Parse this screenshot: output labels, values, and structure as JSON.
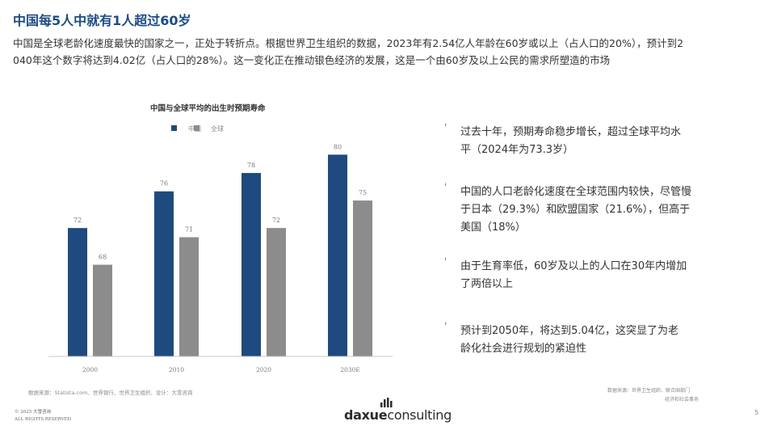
{
  "header": {
    "title": "中国每5人中就有1人超过60岁",
    "intro_line1": "中国是全球老龄化速度最快的国家之一，正处于转折点。根据世界卫生组织的数据，2023年有2.54亿人年龄在60岁或以上（占人口的20%），预计到2",
    "intro_line2": "040年这个数字将达到4.02亿（占人口的28%）。这一变化正在推动银色经济的发展，这是一个由60岁及以上公民的需求所塑造的市场"
  },
  "chart_data": {
    "type": "bar",
    "title": "中国与全球平均的出生时预期寿命",
    "categories": [
      "2000",
      "2010",
      "2020",
      "2030E"
    ],
    "series": [
      {
        "name": "中国",
        "values": [
          72,
          76,
          78,
          80
        ],
        "color": "#1f4a7f"
      },
      {
        "name": "全球",
        "values": [
          68,
          71,
          72,
          75
        ],
        "color": "#8c8c8c"
      }
    ],
    "ylim": [
      58,
      81
    ],
    "legend": "top-left",
    "grid": false,
    "xlabel": "",
    "ylabel": ""
  },
  "sources": {
    "left": "数据来源：Statista.com、世界银行、世界卫生组织、设计：大雪咨询",
    "right_line1": "数据来源：世界卫生组织、联合国部门",
    "right_line2": "经济和社会事务"
  },
  "bullets": [
    {
      "line1": "过去十年，预期寿命稳步增长，超过全球平均水",
      "line2": "平（2024年为73.3岁）",
      "line3": ""
    },
    {
      "line1": "中国的人口老龄化速度在全球范围内较快，尽管慢",
      "line2": "于日本（29.3%）和欧盟国家（21.6%），但高于",
      "line3": "美国（18%）"
    },
    {
      "line1": "由于生育率低，60岁及以上的人口在30年内增加",
      "line2": "了两倍以上",
      "line3": ""
    },
    {
      "line1": "预计到2050年，将达到5.04亿，这突显了为老",
      "line2": "龄化社会进行规划的紧迫性",
      "line3": ""
    }
  ],
  "footer": {
    "copyright_line1": "© 2025 大雪咨询",
    "copyright_line2": "ALL RIGHTS RESERVED",
    "logo_bold": "daxue",
    "logo_regular": "consulting",
    "page_number": "5"
  }
}
